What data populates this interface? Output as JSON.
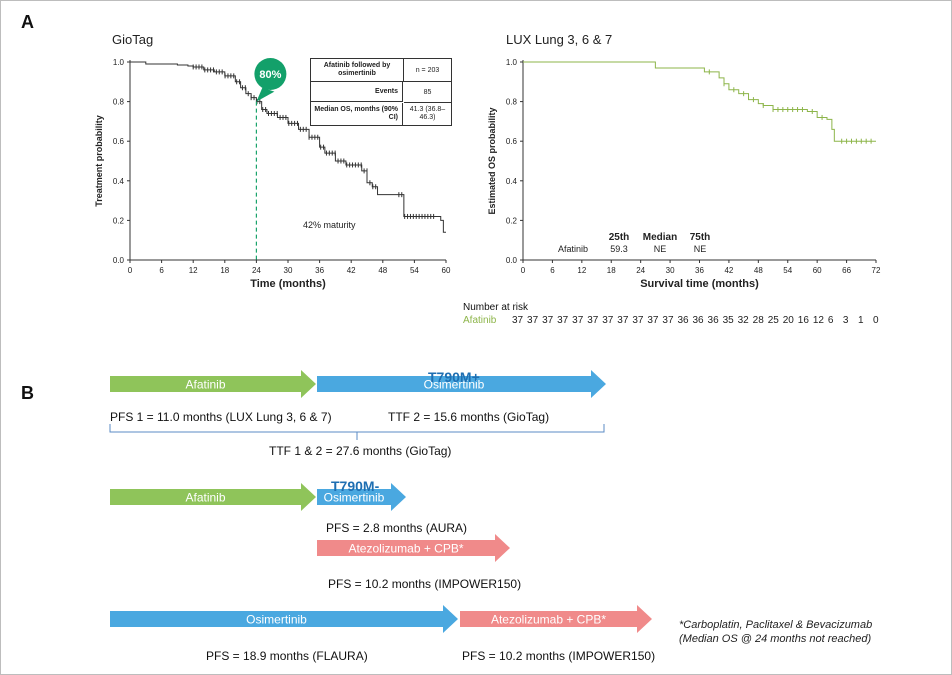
{
  "panels": {
    "a": "A",
    "b": "B"
  },
  "chart_data": [
    {
      "type": "line",
      "title": "GioTag",
      "xlabel": "Time (months)",
      "ylabel": "Treatment probability",
      "xlim": [
        0,
        60
      ],
      "ylim": [
        0.0,
        1.0
      ],
      "xticks": [
        "0",
        "6",
        "12",
        "18",
        "24",
        "30",
        "36",
        "42",
        "48",
        "54",
        "60"
      ],
      "yticks": [
        "0.0",
        "0.2",
        "0.4",
        "0.6",
        "0.8",
        "1.0"
      ],
      "series": [
        {
          "values": [
            [
              0,
              1.0
            ],
            [
              3,
              0.99
            ],
            [
              6,
              0.99
            ],
            [
              9,
              0.985
            ],
            [
              11,
              0.98
            ],
            [
              12,
              0.975
            ],
            [
              14,
              0.96
            ],
            [
              16,
              0.95
            ],
            [
              18,
              0.93
            ],
            [
              20,
              0.9
            ],
            [
              21,
              0.87
            ],
            [
              22,
              0.84
            ],
            [
              23,
              0.82
            ],
            [
              24,
              0.8
            ],
            [
              25,
              0.76
            ],
            [
              26,
              0.74
            ],
            [
              28,
              0.72
            ],
            [
              30,
              0.69
            ],
            [
              32,
              0.66
            ],
            [
              34,
              0.62
            ],
            [
              36,
              0.57
            ],
            [
              37,
              0.54
            ],
            [
              39,
              0.5
            ],
            [
              41,
              0.48
            ],
            [
              43,
              0.48
            ],
            [
              44,
              0.45
            ],
            [
              45,
              0.39
            ],
            [
              46,
              0.37
            ],
            [
              47,
              0.33
            ],
            [
              49,
              0.33
            ],
            [
              51,
              0.33
            ],
            [
              52,
              0.22
            ],
            [
              55,
              0.22
            ],
            [
              58,
              0.22
            ],
            [
              59,
              0.2
            ],
            [
              59.5,
              0.14
            ],
            [
              60,
              0.14
            ]
          ]
        }
      ],
      "annotations": {
        "callout": "80%",
        "callout_x": 24,
        "maturity": "42% maturity"
      }
    },
    {
      "type": "line",
      "title": "LUX Lung 3, 6 & 7",
      "xlabel": "Survival time (months)",
      "ylabel": "Estimated OS probability",
      "xlim": [
        0,
        72
      ],
      "ylim": [
        0.0,
        1.0
      ],
      "xticks": [
        "0",
        "6",
        "12",
        "18",
        "24",
        "30",
        "36",
        "42",
        "48",
        "54",
        "60",
        "66",
        "72"
      ],
      "yticks": [
        "0.0",
        "0.2",
        "0.4",
        "0.6",
        "0.8",
        "1.0"
      ],
      "color": "#8db54a",
      "series": [
        {
          "name": "Afatinib",
          "values": [
            [
              0,
              1.0
            ],
            [
              27,
              1.0
            ],
            [
              27,
              0.97
            ],
            [
              37,
              0.97
            ],
            [
              37,
              0.95
            ],
            [
              40,
              0.95
            ],
            [
              40,
              0.92
            ],
            [
              41,
              0.89
            ],
            [
              42,
              0.86
            ],
            [
              44,
              0.84
            ],
            [
              46,
              0.81
            ],
            [
              48,
              0.79
            ],
            [
              49,
              0.78
            ],
            [
              51,
              0.76
            ],
            [
              56,
              0.76
            ],
            [
              58,
              0.75
            ],
            [
              60,
              0.72
            ],
            [
              61,
              0.72
            ],
            [
              62,
              0.71
            ],
            [
              63,
              0.66
            ],
            [
              63.5,
              0.6
            ],
            [
              72,
              0.6
            ]
          ]
        }
      ],
      "quantiles": {
        "headers": [
          "25th",
          "Median",
          "75th"
        ],
        "row_label": "Afatinib",
        "values": [
          "59.3",
          "NE",
          "NE"
        ]
      }
    }
  ],
  "inset": {
    "rows": [
      {
        "label": "Afatinib followed by osimertinib",
        "value": "n = 203"
      },
      {
        "label": "Events",
        "value": "85"
      },
      {
        "label": "Median OS, months (90% CI)",
        "value": "41.3 (36.8–46.3)"
      }
    ]
  },
  "risk": {
    "header": "Number at risk",
    "label": "Afatinib",
    "values": [
      "37",
      "37",
      "37",
      "37",
      "37",
      "37",
      "37",
      "37",
      "37",
      "37",
      "37",
      "36",
      "36",
      "36",
      "35",
      "32",
      "28",
      "25",
      "20",
      "16",
      "12",
      "6",
      "3",
      "1",
      "0"
    ]
  },
  "sequence": {
    "t790m_plus": "T790M+",
    "t790m_minus": "T790M-",
    "arrows": [
      {
        "label": "Afatinib",
        "color": "#8fc45a"
      },
      {
        "label": "Osimertinib",
        "color": "#4aa8e0"
      },
      {
        "label": "Afatinib",
        "color": "#8fc45a"
      },
      {
        "label": "Osimertinib",
        "color": "#4aa8e0"
      },
      {
        "label": "Atezolizumab + CPB*",
        "color": "#f08a8a"
      },
      {
        "label": "Osimertinib",
        "color": "#4aa8e0"
      },
      {
        "label": "Atezolizumab + CPB*",
        "color": "#f08a8a"
      }
    ],
    "captions": {
      "pfs1": "PFS 1 = 11.0 months (LUX Lung 3, 6 & 7)",
      "ttf2": "TTF 2 = 15.6 months (GioTag)",
      "ttf12": "TTF 1 & 2 = 27.6 months (GioTag)",
      "aura": "PFS = 2.8 months (AURA)",
      "impower1": "PFS = 10.2 months (IMPOWER150)",
      "flaura": "PFS = 18.9 months (FLAURA)",
      "impower2": "PFS = 10.2 months (IMPOWER150)"
    }
  },
  "footnote": {
    "line1": "*Carboplatin, Paclitaxel & Bevacizumab",
    "line2": "(Median OS @ 24 months not reached)"
  }
}
